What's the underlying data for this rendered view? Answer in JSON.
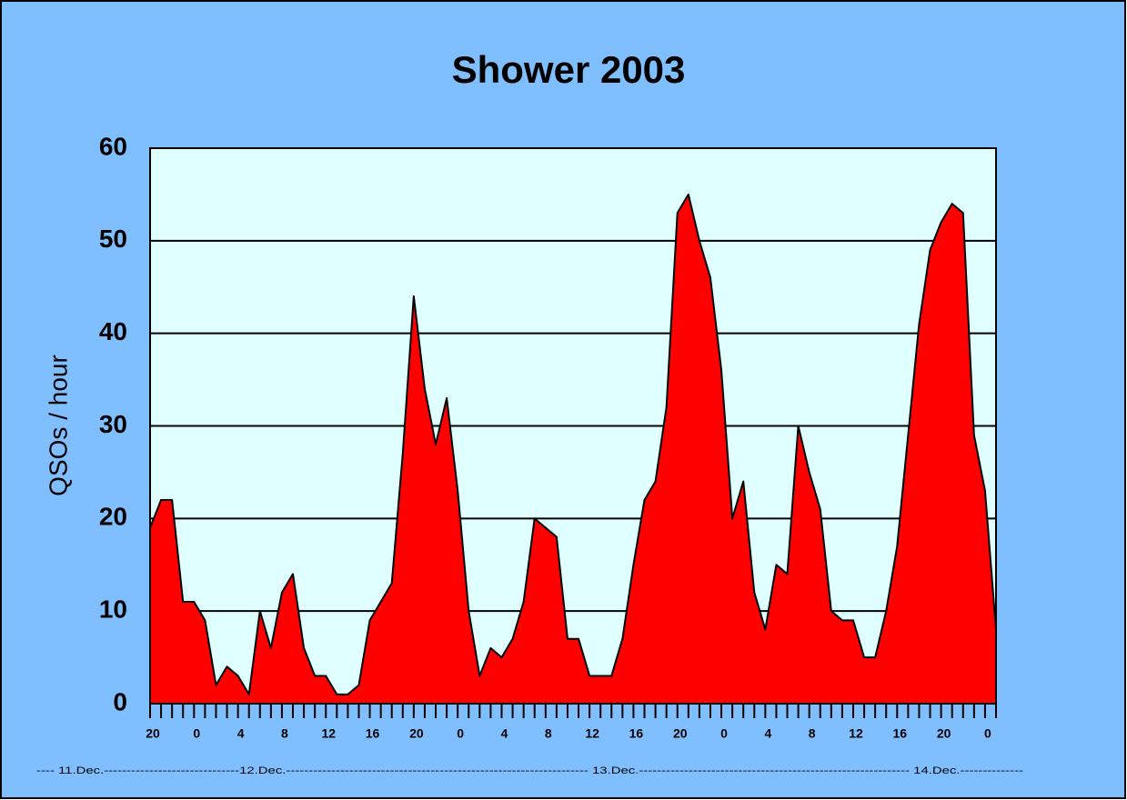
{
  "chart_data": {
    "type": "area",
    "title": "Shower 2003",
    "y_label": "QSOs / hour",
    "date_line": "---- 11.Dec.------------------------------12.Dec.------------------------------------------------------------------- 13.Dec.------------------------------------------------------------ 14.Dec.--------------",
    "categories": [
      "20",
      null,
      null,
      null,
      "0",
      null,
      null,
      null,
      "4",
      null,
      null,
      null,
      "8",
      null,
      null,
      null,
      "12",
      null,
      null,
      null,
      "16",
      null,
      null,
      null,
      "20",
      null,
      null,
      null,
      "0",
      null,
      null,
      null,
      "4",
      null,
      null,
      null,
      "8",
      null,
      null,
      null,
      "12",
      null,
      null,
      null,
      "16",
      null,
      null,
      null,
      "20",
      null,
      null,
      null,
      "0",
      null,
      null,
      null,
      "4",
      null,
      null,
      null,
      "8",
      null,
      null,
      null,
      "12",
      null,
      null,
      null,
      "16",
      null,
      null,
      null,
      "20",
      null,
      null,
      null,
      "0",
      null
    ],
    "series": [
      {
        "name": "QSOs",
        "color": "#ff0000",
        "values": [
          19,
          22,
          22,
          11,
          11,
          9,
          2,
          4,
          3,
          1,
          10,
          6,
          12,
          14,
          6,
          3,
          3,
          1,
          1,
          2,
          9,
          11,
          13,
          27,
          44,
          34,
          28,
          33,
          23,
          10,
          3,
          6,
          5,
          7,
          11,
          20,
          19,
          18,
          7,
          7,
          3,
          3,
          3,
          7,
          15,
          22,
          24,
          32,
          53,
          55,
          50,
          46,
          36,
          20,
          24,
          12,
          8,
          15,
          14,
          30,
          25,
          21,
          10,
          9,
          9,
          5,
          5,
          10,
          17,
          29,
          41,
          49,
          52,
          54,
          53,
          29,
          23,
          8
        ]
      }
    ],
    "ylim": [
      0,
      60
    ],
    "yticks": [
      0,
      10,
      20,
      30,
      40,
      50,
      60
    ],
    "grid": true
  }
}
